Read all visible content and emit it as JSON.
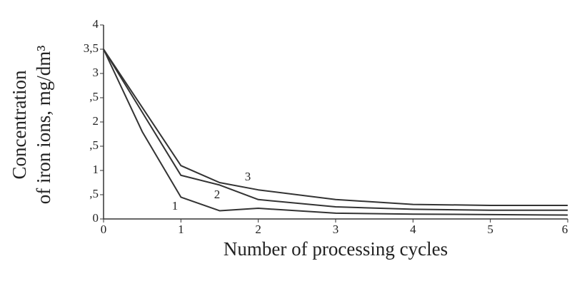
{
  "chart_data": {
    "type": "line",
    "x_label": "Number of processing cycles",
    "y_label": [
      "Concentration",
      "of iron ions, mg/dm³"
    ],
    "x": [
      0,
      0.5,
      1,
      1.5,
      2,
      3,
      4,
      5,
      6
    ],
    "series": [
      {
        "name": "1",
        "color": "#333333",
        "values": [
          3.5,
          1.8,
          0.45,
          0.17,
          0.22,
          0.12,
          0.1,
          0.09,
          0.08
        ]
      },
      {
        "name": "2",
        "color": "#333333",
        "values": [
          3.5,
          2.2,
          0.9,
          0.7,
          0.4,
          0.25,
          0.2,
          0.18,
          0.18
        ]
      },
      {
        "name": "3",
        "color": "#333333",
        "values": [
          3.5,
          2.3,
          1.1,
          0.75,
          0.6,
          0.4,
          0.3,
          0.28,
          0.28
        ]
      }
    ],
    "xlim": [
      0,
      6
    ],
    "xticks": [
      0,
      1,
      2,
      3,
      4,
      5,
      6
    ],
    "ylim": [
      0,
      4
    ],
    "yticks": [
      0,
      {
        "value": 0.5,
        "label": ",5"
      },
      1,
      {
        "value": 1.5,
        "label": ",5"
      },
      2,
      {
        "value": 2.5,
        "label": ",5"
      },
      3,
      {
        "value": 3.5,
        "label": "3,5"
      },
      4
    ]
  }
}
